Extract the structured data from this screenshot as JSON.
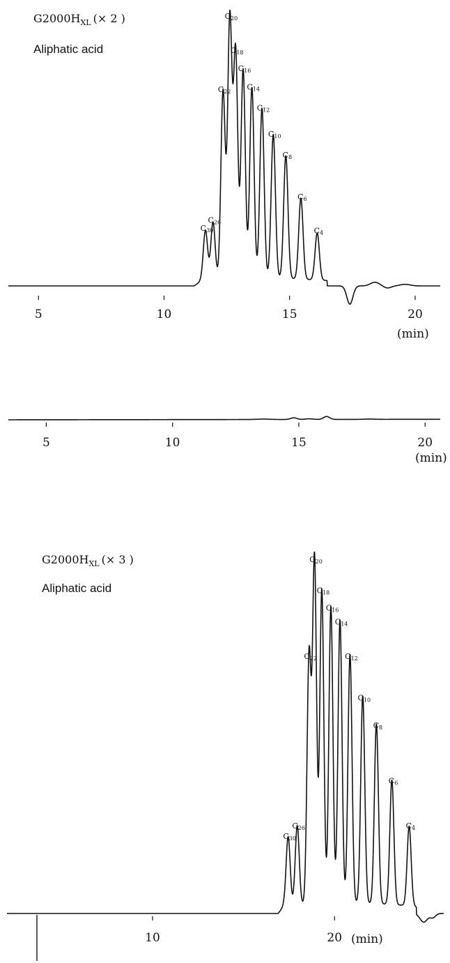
{
  "chart_data": [
    {
      "type": "line",
      "title": "G2000H",
      "title_sub": "XL",
      "title_suffix": "(× 2 )",
      "subtitle": "Aliphatic acid",
      "xlabel": "(min)",
      "xlim": [
        3.8,
        21.0
      ],
      "ylim": [
        0,
        100
      ],
      "ticks": [
        "5",
        "10",
        "15",
        "20"
      ],
      "tick_values": [
        5,
        10,
        15,
        20
      ],
      "peaks": [
        {
          "label": "C30",
          "x": 11.65,
          "y": 19
        },
        {
          "label": "C26",
          "x": 11.95,
          "y": 22
        },
        {
          "label": "C22",
          "x": 12.35,
          "y": 72
        },
        {
          "label": "C20",
          "x": 12.62,
          "y": 100
        },
        {
          "label": "C18",
          "x": 12.85,
          "y": 87
        },
        {
          "label": "C16",
          "x": 13.15,
          "y": 80
        },
        {
          "label": "C14",
          "x": 13.5,
          "y": 73
        },
        {
          "label": "C12",
          "x": 13.9,
          "y": 65
        },
        {
          "label": "C10",
          "x": 14.35,
          "y": 55
        },
        {
          "label": "C8",
          "x": 14.85,
          "y": 47
        },
        {
          "label": "C6",
          "x": 15.45,
          "y": 31
        },
        {
          "label": "C4",
          "x": 16.1,
          "y": 18
        }
      ]
    },
    {
      "type": "line",
      "title": "",
      "xlabel": "(min)",
      "xlim": [
        3.5,
        20.6
      ],
      "ylim": [
        0,
        100
      ],
      "ticks": [
        "5",
        "10",
        "15",
        "20"
      ],
      "tick_values": [
        5,
        10,
        15,
        20
      ],
      "peaks": [
        {
          "label": "",
          "x": 14.8,
          "y": 4
        },
        {
          "label": "",
          "x": 16.1,
          "y": 7
        }
      ]
    },
    {
      "type": "line",
      "title": "G2000H",
      "title_sub": "XL",
      "title_suffix": "(× 3 )",
      "subtitle": "Aliphatic acid",
      "xlabel": "(min)",
      "xlim": [
        2.0,
        26.0
      ],
      "ylim": [
        0,
        100
      ],
      "ticks": [
        "10",
        "20"
      ],
      "tick_values": [
        10,
        20
      ],
      "peaks": [
        {
          "label": "C30",
          "x": 17.45,
          "y": 20
        },
        {
          "label": "C26",
          "x": 17.95,
          "y": 23
        },
        {
          "label": "C22",
          "x": 18.6,
          "y": 72
        },
        {
          "label": "C20",
          "x": 18.9,
          "y": 100
        },
        {
          "label": "C18",
          "x": 19.3,
          "y": 91
        },
        {
          "label": "C16",
          "x": 19.8,
          "y": 86
        },
        {
          "label": "C14",
          "x": 20.3,
          "y": 82
        },
        {
          "label": "C12",
          "x": 20.85,
          "y": 72
        },
        {
          "label": "C10",
          "x": 21.55,
          "y": 60
        },
        {
          "label": "C8",
          "x": 22.3,
          "y": 52
        },
        {
          "label": "C6",
          "x": 23.15,
          "y": 36
        },
        {
          "label": "C4",
          "x": 24.1,
          "y": 23
        }
      ]
    }
  ]
}
